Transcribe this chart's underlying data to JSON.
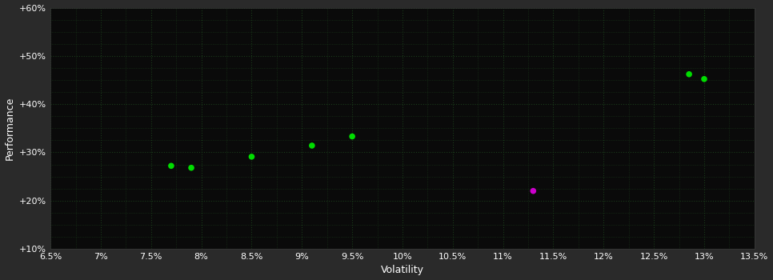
{
  "background_color": "#2a2a2a",
  "plot_bg_color": "#0a0a0a",
  "grid_color": "#1a3a1a",
  "grid_linestyle": ":",
  "grid_linewidth": 0.8,
  "minor_grid": true,
  "xlabel": "Volatility",
  "ylabel": "Performance",
  "xlim": [
    0.065,
    0.135
  ],
  "ylim": [
    0.1,
    0.6
  ],
  "xticks": [
    0.065,
    0.07,
    0.075,
    0.08,
    0.085,
    0.09,
    0.095,
    0.1,
    0.105,
    0.11,
    0.115,
    0.12,
    0.125,
    0.13,
    0.135
  ],
  "yticks": [
    0.1,
    0.2,
    0.3,
    0.4,
    0.5,
    0.6
  ],
  "ytick_extra": [
    0.15,
    0.25,
    0.35,
    0.45,
    0.55
  ],
  "ytick_labels": [
    "+10%",
    "+20%",
    "+30%",
    "+40%",
    "+50%",
    "+60%"
  ],
  "xtick_labels": [
    "6.5%",
    "7%",
    "7.5%",
    "8%",
    "8.5%",
    "9%",
    "9.5%",
    "10%",
    "10.5%",
    "11%",
    "11.5%",
    "12%",
    "12.5%",
    "13%",
    "13.5%"
  ],
  "green_points": [
    [
      0.077,
      0.272
    ],
    [
      0.079,
      0.268
    ],
    [
      0.085,
      0.291
    ],
    [
      0.091,
      0.314
    ],
    [
      0.095,
      0.333
    ],
    [
      0.1285,
      0.462
    ],
    [
      0.13,
      0.452
    ]
  ],
  "magenta_points": [
    [
      0.113,
      0.22
    ]
  ],
  "green_color": "#00dd00",
  "magenta_color": "#cc00cc",
  "marker_size": 30,
  "tick_color": "#ffffff",
  "label_color": "#ffffff",
  "label_fontsize": 9,
  "tick_fontsize": 8,
  "spine_color": "#3a3a3a"
}
